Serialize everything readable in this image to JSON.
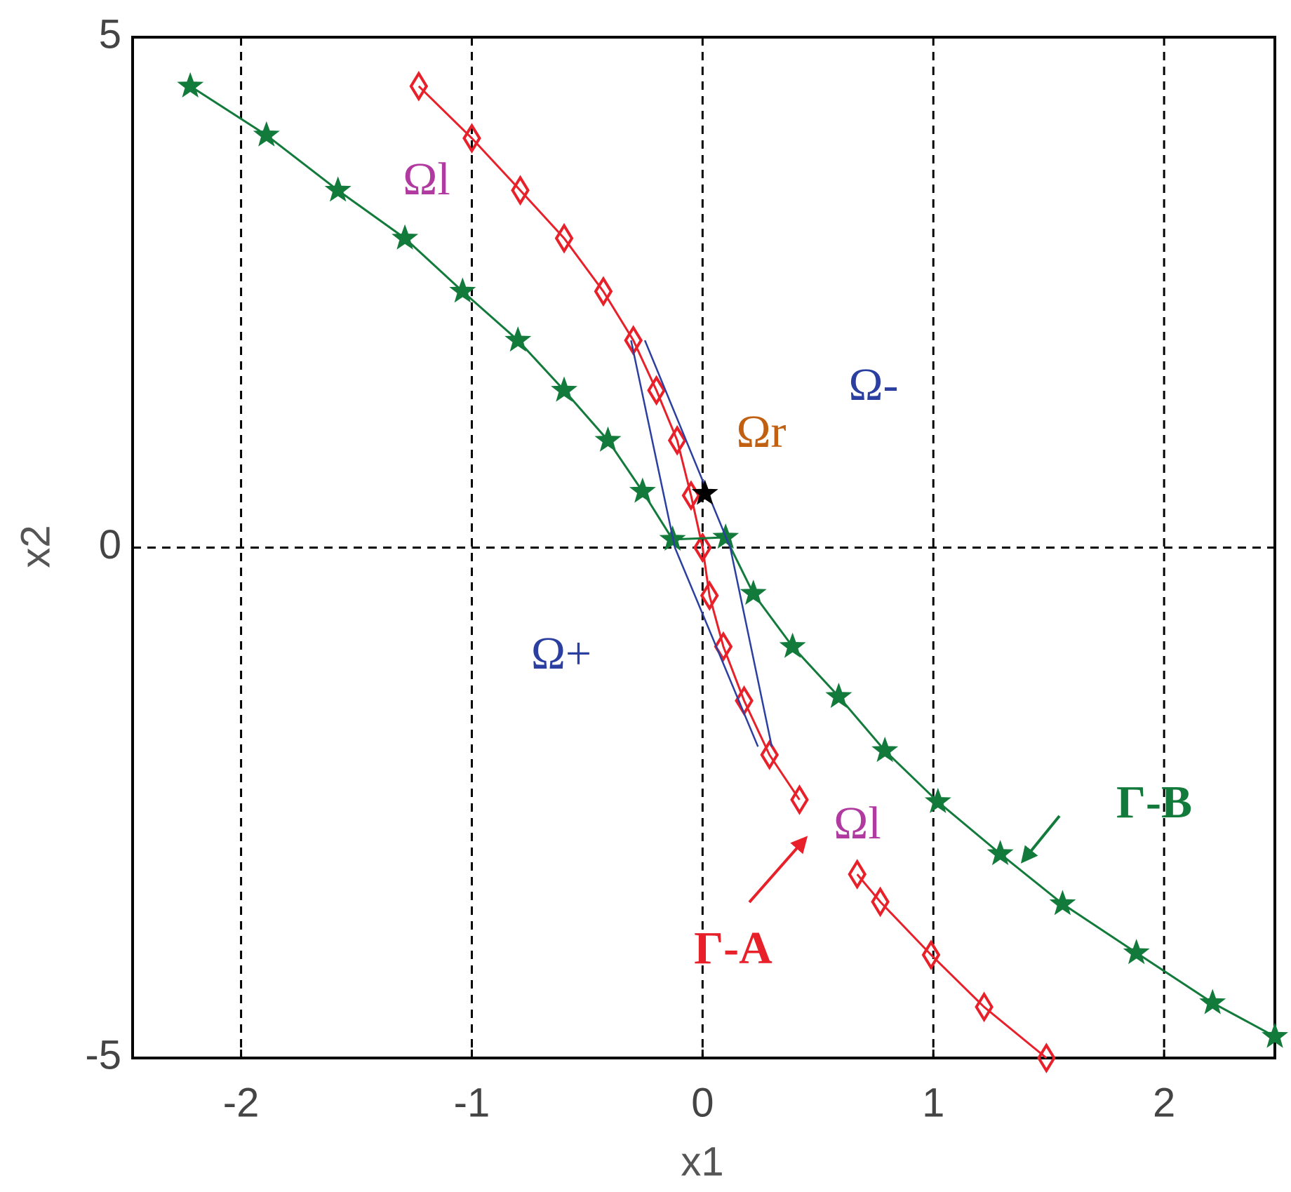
{
  "chart_data": {
    "type": "line",
    "xlabel": "x1",
    "ylabel": "x2",
    "xlim": [
      -2.47,
      2.48
    ],
    "ylim": [
      -5,
      5
    ],
    "xticks": [
      -2,
      -1,
      0,
      1,
      2
    ],
    "yticks": [
      -5,
      0,
      5
    ],
    "grid": true,
    "series": [
      {
        "color": "#e8202a",
        "marker": "diamond",
        "x": [
          -1.23,
          -1.0,
          -0.79,
          -0.6,
          -0.43,
          -0.3,
          -0.2,
          -0.11,
          -0.05,
          0.0,
          0.03,
          0.09,
          0.18,
          0.29,
          0.42,
          null,
          0.67,
          0.77,
          0.99,
          1.22,
          1.49
        ],
        "values": [
          4.52,
          4.01,
          3.5,
          3.03,
          2.51,
          2.03,
          1.54,
          1.05,
          0.51,
          0.0,
          -0.47,
          -0.97,
          -1.5,
          -2.03,
          -2.47,
          null,
          -3.2,
          -3.47,
          -3.99,
          -4.5,
          -5.0
        ]
      },
      {
        "color": "#127a3a",
        "marker": "star",
        "x": [
          -2.22,
          -1.89,
          -1.58,
          -1.29,
          -1.04,
          -0.8,
          -0.6,
          -0.41,
          -0.26,
          -0.13,
          0.1,
          0.22,
          0.39,
          0.59,
          0.79,
          1.02,
          1.29,
          1.56,
          1.88,
          2.21,
          2.48
        ],
        "values": [
          4.52,
          4.04,
          3.5,
          3.03,
          2.51,
          2.03,
          1.54,
          1.05,
          0.55,
          0.08,
          0.1,
          -0.45,
          -0.97,
          -1.46,
          -1.99,
          -2.49,
          -3.0,
          -3.49,
          -3.97,
          -4.46,
          -4.79
        ]
      },
      {
        "color": "#2b3fa0",
        "marker": "none",
        "x": [
          -0.31,
          -0.12,
          0.24
        ],
        "values": [
          2.03,
          0.0,
          -1.95
        ]
      },
      {
        "color": "#2b3fa0",
        "marker": "none",
        "x": [
          -0.25,
          0.12,
          0.3
        ],
        "values": [
          2.03,
          0.0,
          -1.95
        ]
      },
      {
        "color": "#000000",
        "marker": "star",
        "x": [
          0.01
        ],
        "values": [
          0.53
        ]
      }
    ],
    "annotations": [
      {
        "text": "Ωl",
        "color": "#b03aa0"
      },
      {
        "text": "Ω-",
        "color": "#2b3fa0"
      },
      {
        "text": "Ωr",
        "color": "#c06010"
      },
      {
        "text": "Ω+",
        "color": "#2b3fa0"
      },
      {
        "text": "Ωl",
        "color": "#b03aa0"
      },
      {
        "text": "Γ-A",
        "color": "#e8202a"
      },
      {
        "text": "Γ-B",
        "color": "#127a3a"
      }
    ]
  }
}
